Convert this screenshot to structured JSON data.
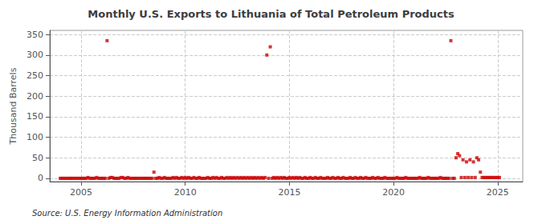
{
  "chart_data": {
    "type": "scatter",
    "title": "Monthly U.S. Exports to Lithuania of Total Petroleum Products",
    "ylabel": "Thousand Barrels",
    "annotations": [
      "Source: U.S. Energy Information Administration"
    ],
    "color": "#cc0000",
    "marker": "square",
    "grid": true,
    "xlim": [
      2003.5,
      2026.2
    ],
    "xticks": [
      2005,
      2010,
      2015,
      2020,
      2025
    ],
    "ylim": [
      -8,
      360
    ],
    "yticks": [
      0,
      50,
      100,
      150,
      200,
      250,
      300,
      350
    ],
    "x": [
      2004.0,
      2004.083,
      2004.167,
      2004.25,
      2004.333,
      2004.417,
      2004.5,
      2004.583,
      2004.667,
      2004.75,
      2004.833,
      2004.917,
      2005.0,
      2005.083,
      2005.167,
      2005.25,
      2005.333,
      2005.417,
      2005.5,
      2005.583,
      2005.667,
      2005.75,
      2005.833,
      2005.917,
      2006.0,
      2006.083,
      2006.167,
      2006.25,
      2006.333,
      2006.417,
      2006.5,
      2006.583,
      2006.667,
      2006.75,
      2006.833,
      2006.917,
      2007.0,
      2007.083,
      2007.167,
      2007.25,
      2007.333,
      2007.417,
      2007.5,
      2007.583,
      2007.667,
      2007.75,
      2007.833,
      2007.917,
      2008.0,
      2008.083,
      2008.167,
      2008.25,
      2008.333,
      2008.417,
      2008.5,
      2008.583,
      2008.667,
      2008.75,
      2008.833,
      2008.917,
      2009.0,
      2009.083,
      2009.167,
      2009.25,
      2009.333,
      2009.417,
      2009.5,
      2009.583,
      2009.667,
      2009.75,
      2009.833,
      2009.917,
      2010.0,
      2010.083,
      2010.167,
      2010.25,
      2010.333,
      2010.417,
      2010.5,
      2010.583,
      2010.667,
      2010.75,
      2010.833,
      2010.917,
      2011.0,
      2011.083,
      2011.167,
      2011.25,
      2011.333,
      2011.417,
      2011.5,
      2011.583,
      2011.667,
      2011.75,
      2011.833,
      2011.917,
      2012.0,
      2012.083,
      2012.167,
      2012.25,
      2012.333,
      2012.417,
      2012.5,
      2012.583,
      2012.667,
      2012.75,
      2012.833,
      2012.917,
      2013.0,
      2013.083,
      2013.167,
      2013.25,
      2013.333,
      2013.417,
      2013.5,
      2013.583,
      2013.667,
      2013.75,
      2013.833,
      2013.917,
      2014.0,
      2014.083,
      2014.167,
      2014.25,
      2014.333,
      2014.417,
      2014.5,
      2014.583,
      2014.667,
      2014.75,
      2014.833,
      2014.917,
      2015.0,
      2015.083,
      2015.167,
      2015.25,
      2015.333,
      2015.417,
      2015.5,
      2015.583,
      2015.667,
      2015.75,
      2015.833,
      2015.917,
      2016.0,
      2016.083,
      2016.167,
      2016.25,
      2016.333,
      2016.417,
      2016.5,
      2016.583,
      2016.667,
      2016.75,
      2016.833,
      2016.917,
      2017.0,
      2017.083,
      2017.167,
      2017.25,
      2017.333,
      2017.417,
      2017.5,
      2017.583,
      2017.667,
      2017.75,
      2017.833,
      2017.917,
      2018.0,
      2018.083,
      2018.167,
      2018.25,
      2018.333,
      2018.417,
      2018.5,
      2018.583,
      2018.667,
      2018.75,
      2018.833,
      2018.917,
      2019.0,
      2019.083,
      2019.167,
      2019.25,
      2019.333,
      2019.417,
      2019.5,
      2019.583,
      2019.667,
      2019.75,
      2019.833,
      2019.917,
      2020.0,
      2020.083,
      2020.167,
      2020.25,
      2020.333,
      2020.417,
      2020.5,
      2020.583,
      2020.667,
      2020.75,
      2020.833,
      2020.917,
      2021.0,
      2021.083,
      2021.167,
      2021.25,
      2021.333,
      2021.417,
      2021.5,
      2021.583,
      2021.667,
      2021.75,
      2021.833,
      2021.917,
      2022.0,
      2022.083,
      2022.167,
      2022.25,
      2022.333,
      2022.417,
      2022.5,
      2022.583,
      2022.667,
      2022.75,
      2022.833,
      2022.917,
      2023.0,
      2023.083,
      2023.167,
      2023.25,
      2023.333,
      2023.417,
      2023.5,
      2023.583,
      2023.667,
      2023.75,
      2023.833,
      2023.917,
      2024.0,
      2024.083,
      2024.167,
      2024.25,
      2024.333,
      2024.417,
      2024.5,
      2024.583,
      2024.667,
      2024.75,
      2024.833,
      2024.917,
      2025.0,
      2025.083
    ],
    "values": [
      0,
      0,
      0,
      0,
      0,
      0,
      0,
      0,
      0,
      0,
      0,
      0,
      0,
      0,
      0,
      0,
      2,
      0,
      0,
      0,
      0,
      2,
      0,
      0,
      0,
      0,
      0,
      335,
      0,
      2,
      2,
      0,
      0,
      0,
      0,
      2,
      2,
      0,
      0,
      2,
      0,
      0,
      0,
      0,
      0,
      0,
      0,
      0,
      0,
      0,
      0,
      0,
      0,
      0,
      15,
      0,
      0,
      2,
      0,
      0,
      2,
      0,
      0,
      0,
      0,
      2,
      0,
      2,
      0,
      0,
      2,
      0,
      2,
      0,
      2,
      0,
      0,
      2,
      0,
      0,
      2,
      0,
      0,
      0,
      0,
      2,
      0,
      0,
      2,
      0,
      2,
      0,
      0,
      2,
      0,
      0,
      2,
      0,
      2,
      0,
      2,
      0,
      2,
      0,
      2,
      0,
      2,
      0,
      2,
      0,
      2,
      0,
      2,
      0,
      2,
      0,
      2,
      0,
      2,
      300,
      0,
      320,
      0,
      2,
      0,
      2,
      0,
      2,
      0,
      2,
      0,
      0,
      2,
      0,
      2,
      0,
      2,
      0,
      2,
      0,
      0,
      2,
      0,
      0,
      2,
      0,
      0,
      2,
      0,
      0,
      2,
      0,
      0,
      0,
      2,
      0,
      0,
      2,
      0,
      0,
      2,
      0,
      0,
      2,
      0,
      0,
      0,
      2,
      0,
      0,
      2,
      0,
      0,
      2,
      0,
      0,
      2,
      0,
      0,
      0,
      2,
      0,
      0,
      2,
      0,
      0,
      0,
      2,
      0,
      0,
      0,
      0,
      0,
      0,
      2,
      0,
      0,
      0,
      0,
      2,
      0,
      0,
      0,
      0,
      0,
      0,
      0,
      2,
      0,
      0,
      0,
      0,
      2,
      0,
      0,
      0,
      0,
      0,
      0,
      2,
      0,
      0,
      0,
      0,
      0,
      335,
      0,
      0,
      50,
      60,
      55,
      2,
      45,
      2,
      40,
      2,
      45,
      2,
      40,
      2,
      50,
      45,
      15,
      2,
      2,
      2,
      2,
      2,
      2,
      2,
      2,
      2,
      2,
      2
    ]
  }
}
